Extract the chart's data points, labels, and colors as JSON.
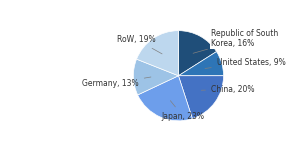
{
  "labels": [
    "Republic of South\nKorea",
    "United States",
    "China",
    "Japan",
    "Germany",
    "RoW"
  ],
  "values": [
    16,
    9,
    20,
    23,
    13,
    19
  ],
  "colors": [
    "#1f4e79",
    "#2e75b6",
    "#4472c4",
    "#6d9eeb",
    "#9dc3e6",
    "#bdd7ee"
  ],
  "startangle": 90
}
